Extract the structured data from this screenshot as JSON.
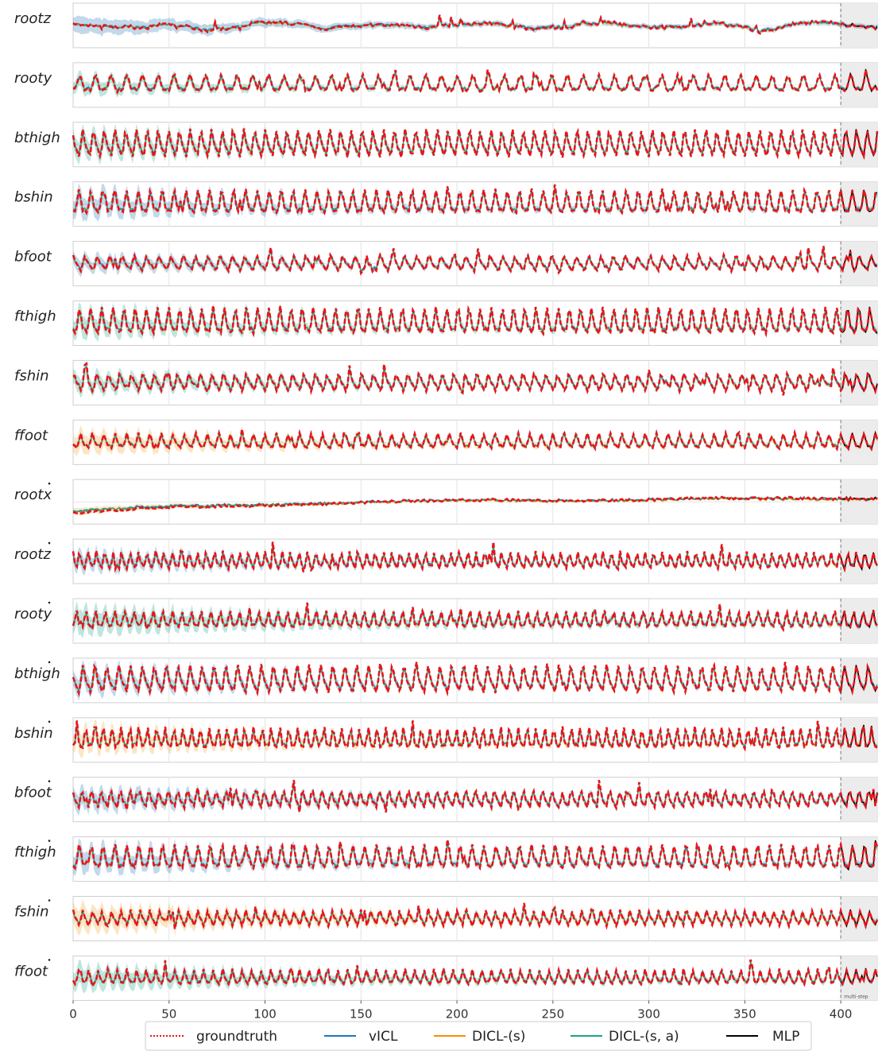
{
  "chart_data": {
    "type": "line",
    "description_note": "",
    "xlim": [
      0,
      419
    ],
    "x_ticks": [
      0,
      50,
      100,
      150,
      200,
      250,
      300,
      350,
      400
    ],
    "forecast_start": 400,
    "forecast_region_label": "multi-step",
    "grid": true,
    "legend_position": "bottom",
    "series": [
      {
        "name": "groundtruth",
        "color": "#e8141b",
        "style": "dotted"
      },
      {
        "name": "vICL",
        "color": "#1f77b4",
        "style": "solid"
      },
      {
        "name": "DICL-(s)",
        "color": "#ff8c00",
        "style": "solid"
      },
      {
        "name": "DICL-(s, a)",
        "color": "#17a589",
        "style": "solid"
      },
      {
        "name": "MLP",
        "color": "#000000",
        "style": "solid"
      }
    ],
    "panels": [
      {
        "label": "rootz",
        "dot": false,
        "period": 0,
        "amp": 0.25,
        "spike": 0.35,
        "drift": 0,
        "band": 0.35,
        "band_color": "blue",
        "seed": 1
      },
      {
        "label": "rooty",
        "dot": false,
        "period": 8.2,
        "amp": 0.35,
        "spike": 0.3,
        "drift": 0,
        "band": 0.3,
        "band_color": "teal",
        "seed": 2
      },
      {
        "label": "bthigh",
        "dot": false,
        "period": 5.6,
        "amp": 0.55,
        "spike": 0.05,
        "drift": 0,
        "band": 0.45,
        "band_color": "teal",
        "seed": 3
      },
      {
        "label": "bshin",
        "dot": false,
        "period": 6.2,
        "amp": 0.5,
        "spike": 0.35,
        "drift": 0,
        "band": 0.45,
        "band_color": "blue",
        "seed": 4
      },
      {
        "label": "bfoot",
        "dot": false,
        "period": 6.4,
        "amp": 0.3,
        "spike": 0.55,
        "drift": 0,
        "band": 0.3,
        "band_color": "blue",
        "seed": 5
      },
      {
        "label": "fthigh",
        "dot": false,
        "period": 5.8,
        "amp": 0.55,
        "spike": 0.1,
        "drift": 0,
        "band": 0.45,
        "band_color": "teal",
        "seed": 6
      },
      {
        "label": "fshin",
        "dot": false,
        "period": 6.0,
        "amp": 0.35,
        "spike": 0.45,
        "drift": 0,
        "band": 0.35,
        "band_color": "teal",
        "seed": 7
      },
      {
        "label": "ffoot",
        "dot": false,
        "period": 6.0,
        "amp": 0.3,
        "spike": 0.3,
        "drift": 0,
        "band": 0.4,
        "band_color": "orange",
        "seed": 8
      },
      {
        "label": "rootx",
        "dot": true,
        "period": 0,
        "amp": 0.04,
        "spike": 0.02,
        "drift": 1,
        "band": 0.15,
        "band_color": "orange",
        "seed": 9
      },
      {
        "label": "rootz",
        "dot": true,
        "period": 4.4,
        "amp": 0.35,
        "spike": 0.6,
        "drift": 0,
        "band": 0.35,
        "band_color": "blue",
        "seed": 10
      },
      {
        "label": "rooty",
        "dot": true,
        "period": 5.0,
        "amp": 0.35,
        "spike": 0.35,
        "drift": 0,
        "band": 0.5,
        "band_color": "teal",
        "seed": 11
      },
      {
        "label": "bthigh",
        "dot": true,
        "period": 6.2,
        "amp": 0.55,
        "spike": 0.15,
        "drift": 0,
        "band": 0.4,
        "band_color": "blue",
        "seed": 12
      },
      {
        "label": "bshin",
        "dot": true,
        "period": 4.6,
        "amp": 0.45,
        "spike": 0.35,
        "drift": 0,
        "band": 0.45,
        "band_color": "orange",
        "seed": 13
      },
      {
        "label": "bfoot",
        "dot": true,
        "period": 5.0,
        "amp": 0.35,
        "spike": 0.55,
        "drift": 0,
        "band": 0.4,
        "band_color": "blue",
        "seed": 14
      },
      {
        "label": "fthigh",
        "dot": true,
        "period": 6.2,
        "amp": 0.5,
        "spike": 0.3,
        "drift": 0,
        "band": 0.45,
        "band_color": "blue",
        "seed": 15
      },
      {
        "label": "fshin",
        "dot": true,
        "period": 5.0,
        "amp": 0.3,
        "spike": 0.4,
        "drift": 0,
        "band": 0.5,
        "band_color": "orange",
        "seed": 16
      },
      {
        "label": "ffoot",
        "dot": true,
        "period": 5.0,
        "amp": 0.3,
        "spike": 0.4,
        "drift": 0,
        "band": 0.45,
        "band_color": "teal",
        "seed": 17
      }
    ]
  }
}
